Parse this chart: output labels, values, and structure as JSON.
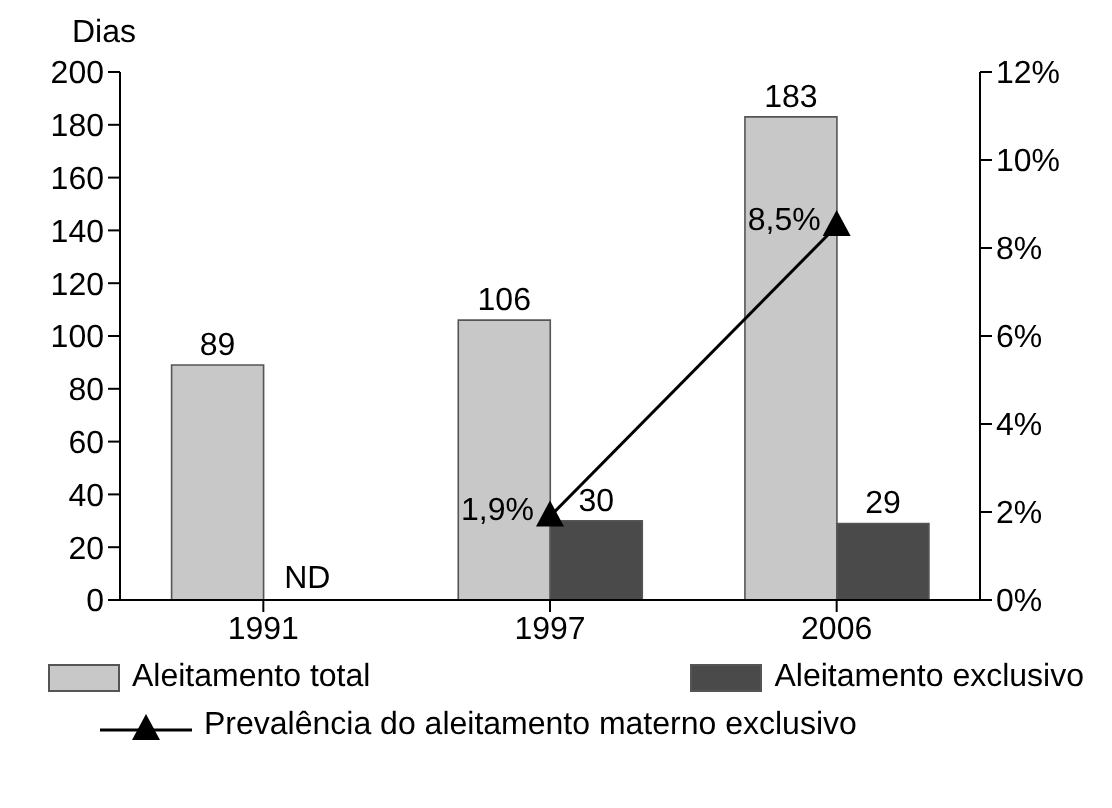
{
  "chart_data": {
    "type": "bar",
    "ylabel": "Dias",
    "categories": [
      "1991",
      "1997",
      "2006"
    ],
    "series": [
      {
        "name": "Aleitamento total",
        "color": "#c8c8c8",
        "values": [
          89,
          106,
          183
        ]
      },
      {
        "name": "Aleitamento exclusivo",
        "color": "#4a4a4a",
        "values": [
          null,
          30,
          29
        ]
      },
      {
        "name": "Prevalência do aleitamento materno exclusivo",
        "type": "line",
        "axis": "y2",
        "color": "#000000",
        "marker": "triangle",
        "values": [
          null,
          1.9,
          8.5
        ],
        "value_labels": [
          null,
          "1,9%",
          "8,5%"
        ]
      }
    ],
    "data_labels": true,
    "annotations": [
      {
        "text": "ND",
        "x": "1991",
        "y": 0
      }
    ],
    "ylim": [
      0,
      200
    ],
    "yticks": [
      0,
      20,
      40,
      60,
      80,
      100,
      120,
      140,
      160,
      180,
      200
    ],
    "y2lim": [
      0,
      12
    ],
    "y2ticks": [
      {
        "value": 0,
        "label": "0%"
      },
      {
        "value": 2,
        "label": "2%"
      },
      {
        "value": 4,
        "label": "4%"
      },
      {
        "value": 6,
        "label": "6%"
      },
      {
        "value": 8,
        "label": "8%"
      },
      {
        "value": 10,
        "label": "10%"
      },
      {
        "value": 12,
        "label": "12%"
      }
    ],
    "grid": false,
    "legend": "bottom"
  }
}
